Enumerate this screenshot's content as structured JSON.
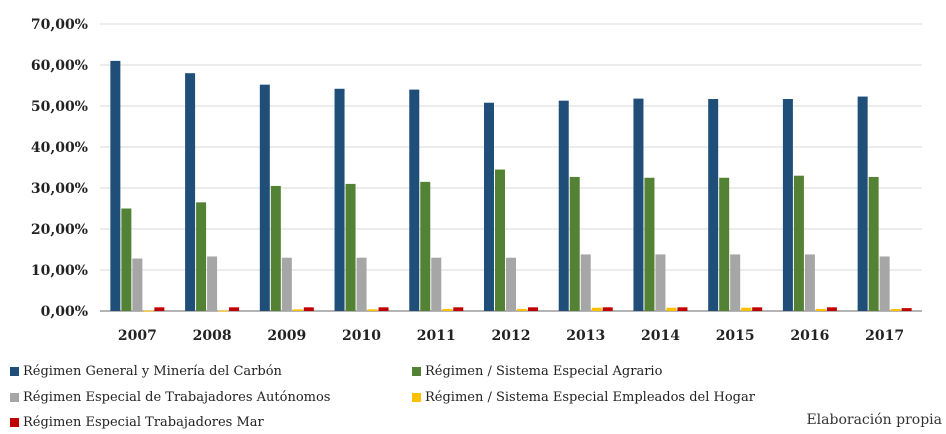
{
  "chart_data": {
    "type": "bar",
    "title_fragment": "",
    "categories": [
      "2007",
      "2008",
      "2009",
      "2010",
      "2011",
      "2012",
      "2013",
      "2014",
      "2015",
      "2016",
      "2017"
    ],
    "ylim": [
      0,
      70
    ],
    "yticks": [
      "0,00%",
      "10,00%",
      "20,00%",
      "30,00%",
      "40,00%",
      "50,00%",
      "60,00%",
      "70,00%"
    ],
    "grid": true,
    "legend_position": "bottom",
    "series": [
      {
        "name": "Régimen General y Minería del Carbón",
        "color": "#1f4e79",
        "values": [
          61,
          58,
          55.2,
          54.2,
          54,
          50.8,
          51.3,
          51.8,
          51.7,
          51.7,
          52.3
        ]
      },
      {
        "name": "Régimen / Sistema Especial Agrario",
        "color": "#548235",
        "values": [
          25,
          26.5,
          30.5,
          31,
          31.5,
          34.5,
          32.7,
          32.5,
          32.5,
          33,
          32.7
        ]
      },
      {
        "name": "Régimen Especial de Trabajadores Autónomos",
        "color": "#a6a6a6",
        "values": [
          12.8,
          13.3,
          13,
          13,
          13,
          13,
          13.8,
          13.8,
          13.8,
          13.8,
          13.3
        ]
      },
      {
        "name": "Régimen / Sistema Especial Empleados del Hogar",
        "color": "#ffc000",
        "values": [
          0.1,
          0.1,
          0.4,
          0.4,
          0.5,
          0.5,
          0.8,
          0.8,
          0.8,
          0.5,
          0.5
        ]
      },
      {
        "name": "Régimen Especial Trabajadores Mar",
        "color": "#c00000",
        "values": [
          0.9,
          0.9,
          0.9,
          0.9,
          0.9,
          0.9,
          0.9,
          0.9,
          0.9,
          0.9,
          0.7
        ]
      }
    ]
  },
  "source_note": "Elaboración propia"
}
